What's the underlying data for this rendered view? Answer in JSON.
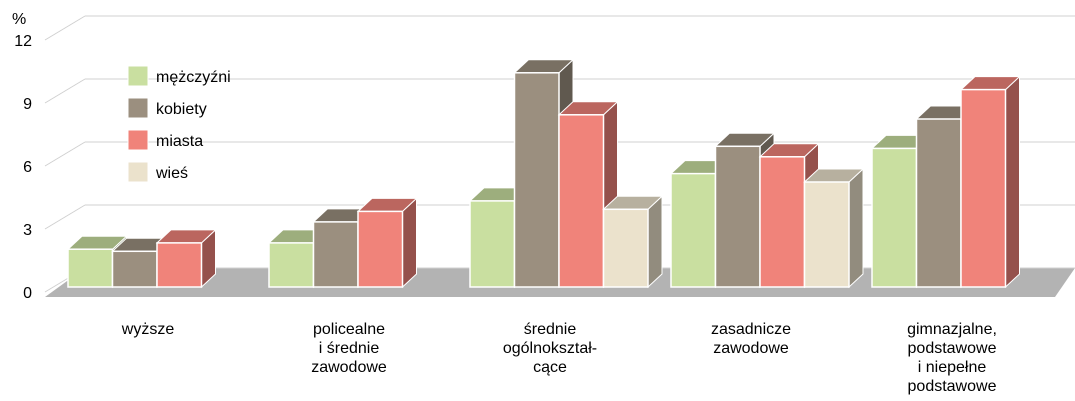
{
  "chart_data": {
    "type": "bar3d",
    "y_label": "%",
    "categories": [
      "wyższe",
      "policealne\ni średnie\nzawodowe",
      "średnie\nogólnokształ-\ncące",
      "zasadnicze\nzawodowe",
      "gimnazjalne,\npodstawowe\ni niepełne\npodstawowe"
    ],
    "series": [
      {
        "name": "mężczyźni",
        "color": "#c9dfa0",
        "values": [
          1.8,
          2.1,
          4.1,
          5.4,
          6.6
        ]
      },
      {
        "name": "kobiety",
        "color": "#9b8f7f",
        "values": [
          1.7,
          3.1,
          10.2,
          6.7,
          8.0
        ]
      },
      {
        "name": "miasta",
        "color": "#f0837a",
        "values": [
          2.1,
          3.6,
          8.2,
          6.2,
          9.4
        ]
      },
      {
        "name": "wieś",
        "color": "#ebe2cc",
        "values": [
          null,
          null,
          3.7,
          5.0,
          null
        ]
      }
    ],
    "ylim": [
      0,
      12
    ],
    "yticks": [
      0,
      3,
      6,
      9,
      12
    ],
    "grid": true,
    "legend": "upper-left"
  }
}
